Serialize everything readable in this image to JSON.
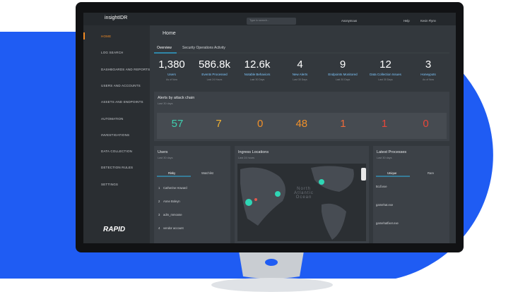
{
  "app": {
    "logo": "insightIDR",
    "search": "Type to search...",
    "org": "Anonymous",
    "help": "Help",
    "user": "Kevin Flynn"
  },
  "sidebar": {
    "items": [
      "HOME",
      "LOG SEARCH",
      "DASHBOARDS AND REPORTS",
      "USERS AND ACCOUNTS",
      "ASSETS AND ENDPOINTS",
      "AUTOMATION",
      "INVESTIGATIONS",
      "DATA COLLECTION",
      "DETECTION RULES",
      "SETTINGS"
    ],
    "brand": "RAPID"
  },
  "page": {
    "title": "Home",
    "tabs": [
      "Overview",
      "Security Operations Activity"
    ]
  },
  "stats": [
    {
      "value": "1,380",
      "label": "Users",
      "note": "As of Now"
    },
    {
      "value": "586.8k",
      "label": "Events Processed",
      "note": "Last 24 Hours"
    },
    {
      "value": "12.6k",
      "label": "Notable Behaviors",
      "note": "Last 30 Days"
    },
    {
      "value": "4",
      "label": "New Alerts",
      "note": "Last 30 Days"
    },
    {
      "value": "9",
      "label": "Endpoints Monitored",
      "note": "Last 30 Days"
    },
    {
      "value": "12",
      "label": "Data Collection Issues",
      "note": "Last 30 Days"
    },
    {
      "value": "3",
      "label": "Honeypots",
      "note": "As of Now"
    }
  ],
  "alerts": {
    "title": "Alerts by attack chain",
    "subtitle": "Last 30 days",
    "values": [
      "57",
      "7",
      "0",
      "48",
      "1",
      "1",
      "0"
    ]
  },
  "users": {
    "title": "Users",
    "subtitle": "Last 30 days",
    "tabs": [
      "Risky",
      "Watchlist"
    ],
    "rows": [
      {
        "rank": "1",
        "name": "Catherine Howard"
      },
      {
        "rank": "2",
        "name": "Anne Boleyn"
      },
      {
        "rank": "3",
        "name": "adm_mmoose"
      },
      {
        "rank": "4",
        "name": "vendor account"
      }
    ]
  },
  "ingress": {
    "title": "Ingress Locations",
    "subtitle": "Last 24 hours",
    "map_label": "North Atlantic Ocean"
  },
  "processes": {
    "title": "Latest Processes",
    "subtitle": "Last 30 days",
    "tabs": [
      "Unique",
      "Rare"
    ],
    "items": [
      "ttcdl.exe",
      "gamehat.exe",
      "gamehatfixer.exe"
    ]
  }
}
